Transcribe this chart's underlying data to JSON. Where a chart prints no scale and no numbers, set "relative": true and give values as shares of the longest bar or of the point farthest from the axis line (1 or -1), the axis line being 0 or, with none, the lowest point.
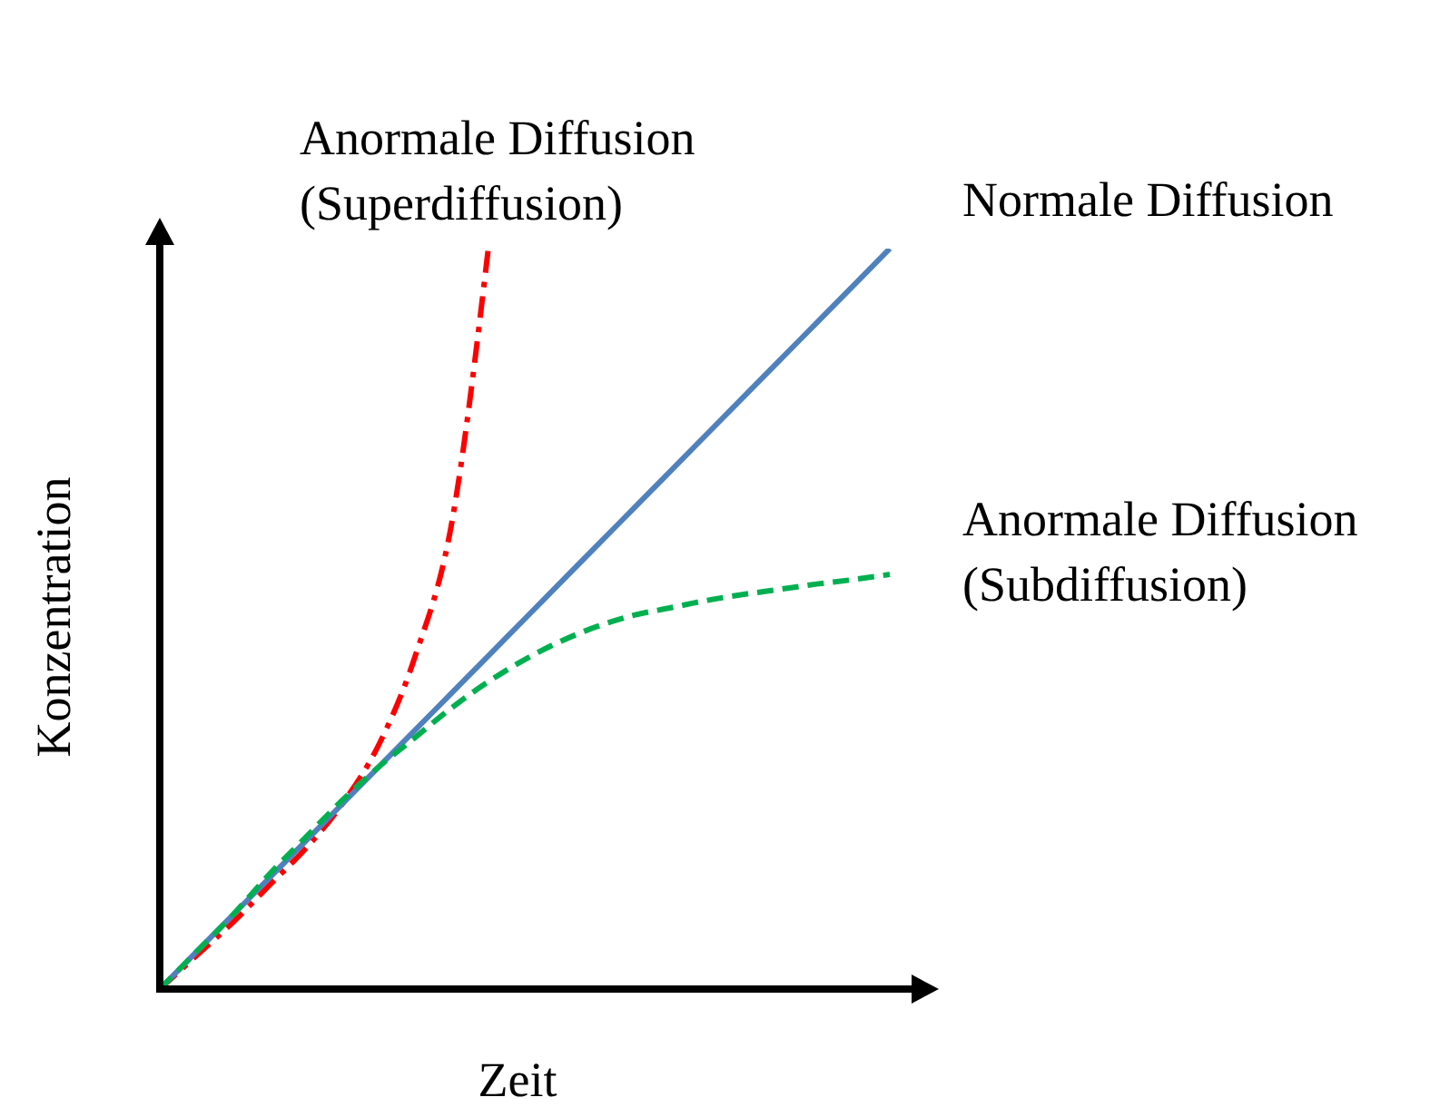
{
  "chart_data": {
    "type": "line",
    "relative": true,
    "xlabel": "Zeit",
    "ylabel": "Konzentration",
    "categories": [
      null,
      null,
      null,
      null,
      null,
      null,
      null,
      null,
      null,
      null,
      null,
      null,
      null,
      null,
      null,
      null,
      null,
      null,
      null,
      null,
      null
    ],
    "series": [
      {
        "name": "Anormale Diffusion (Superdiffusion)",
        "color": "#ff0000",
        "line_style": "dashdot",
        "values": [
          0,
          0.045,
          0.09,
          0.14,
          0.19,
          0.25,
          0.33,
          0.45,
          0.63,
          1.0,
          null,
          null,
          null,
          null,
          null,
          null,
          null,
          null,
          null,
          null,
          null
        ]
      },
      {
        "name": "Normale Diffusion",
        "color": "#4f81bd",
        "line_style": "solid",
        "values": [
          0,
          0.05,
          0.1,
          0.15,
          0.2,
          0.25,
          0.3,
          0.35,
          0.4,
          0.45,
          0.5,
          0.55,
          0.6,
          0.65,
          0.7,
          0.75,
          0.8,
          0.85,
          0.9,
          0.95,
          1.0
        ]
      },
      {
        "name": "Anormale Diffusion (Subdiffusion)",
        "color": "#00b050",
        "line_style": "dashed",
        "values": [
          0,
          0.05,
          0.1,
          0.155,
          0.205,
          0.255,
          0.3,
          0.34,
          0.38,
          0.415,
          0.445,
          0.47,
          0.49,
          0.505,
          0.515,
          0.525,
          0.533,
          0.54,
          0.547,
          0.553,
          0.56
        ]
      }
    ]
  }
}
